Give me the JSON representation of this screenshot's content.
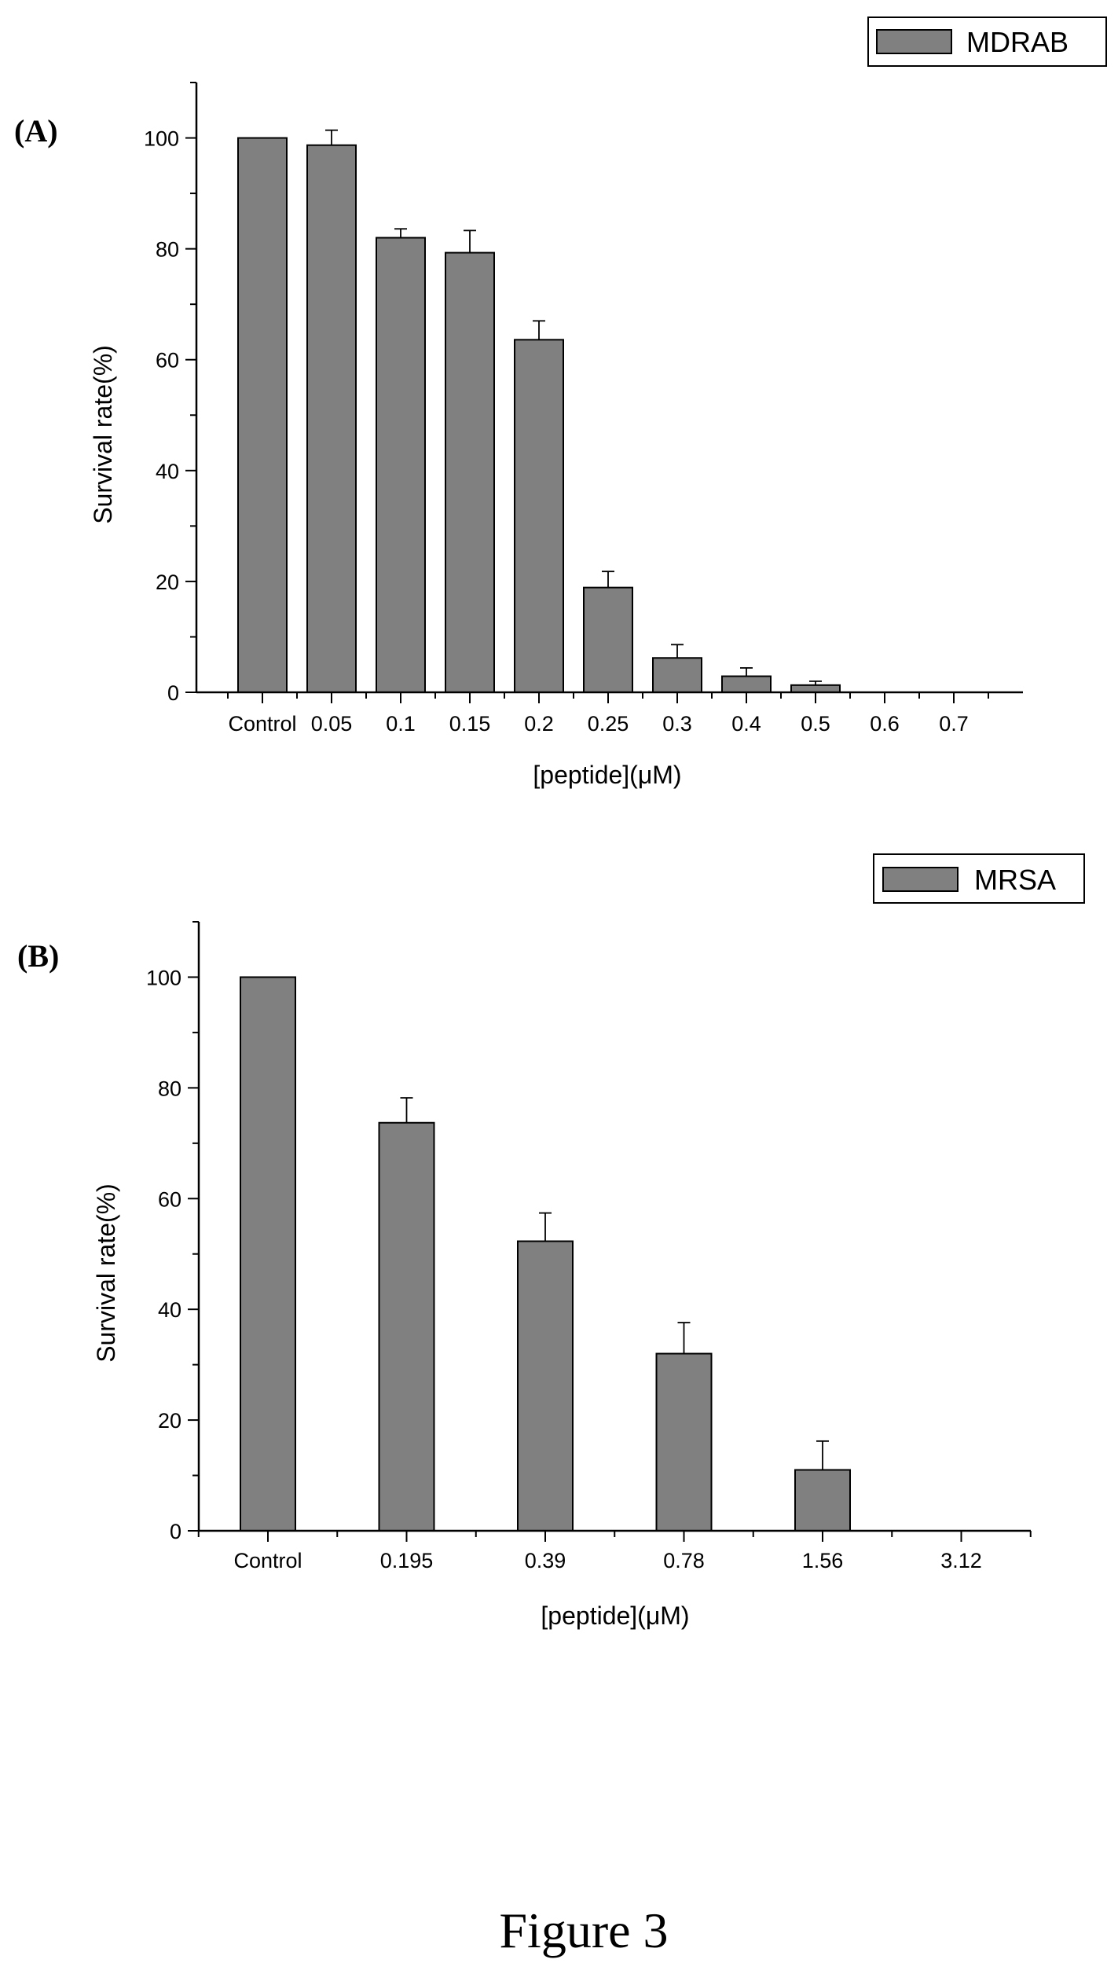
{
  "figure_caption": "Figure 3",
  "chart_data": [
    {
      "type": "bar",
      "panel_label": "(A)",
      "categories": [
        "Control",
        "0.05",
        "0.1",
        "0.15",
        "0.2",
        "0.25",
        "0.3",
        "0.4",
        "0.5",
        "0.6",
        "0.7"
      ],
      "series": [
        {
          "name": "MDRAB",
          "values": [
            100,
            98.7,
            82,
            79.3,
            63.6,
            18.9,
            6.2,
            2.9,
            1.3,
            0,
            0
          ],
          "errors": [
            0,
            2.7,
            1.6,
            4.0,
            3.4,
            2.9,
            2.4,
            1.5,
            0.7,
            0,
            0
          ]
        }
      ],
      "xlabel": "[peptide](μM)",
      "ylabel": "Survival rate(%)",
      "ylim": [
        0,
        110
      ],
      "yticks": [
        0,
        20,
        40,
        60,
        80,
        100
      ],
      "legend_position": "top-right",
      "bar_color": "#808080",
      "grid": false
    },
    {
      "type": "bar",
      "panel_label": "(B)",
      "categories": [
        "Control",
        "0.195",
        "0.39",
        "0.78",
        "1.56",
        "3.12"
      ],
      "series": [
        {
          "name": "MRSA",
          "values": [
            100,
            73.7,
            52.3,
            32.0,
            11.0,
            0
          ],
          "errors": [
            0,
            4.5,
            5.1,
            5.6,
            5.2,
            0
          ]
        }
      ],
      "xlabel": "[peptide](μM)",
      "ylabel": "Survival rate(%)",
      "ylim": [
        0,
        110
      ],
      "yticks": [
        0,
        20,
        40,
        60,
        80,
        100
      ],
      "legend_position": "top-right",
      "bar_color": "#808080",
      "grid": false
    }
  ]
}
